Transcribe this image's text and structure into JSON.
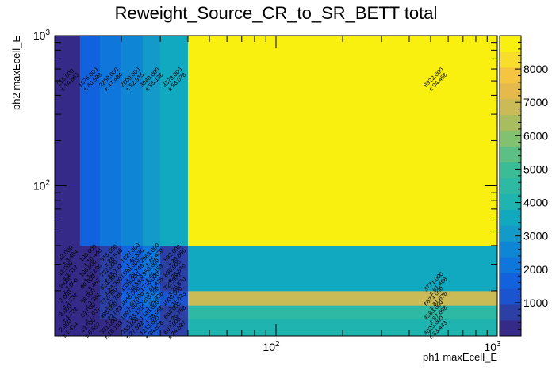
{
  "chart_data": {
    "type": "heatmap",
    "title": "Reweight_Source_CR_to_SR_BETT total",
    "xlabel": "ph1 maxEcell_E",
    "ylabel": "ph2 maxEcell_E",
    "xscale": "log",
    "yscale": "log",
    "xlim": [
      10,
      1000
    ],
    "ylim": [
      10,
      1000
    ],
    "x_edges": [
      10,
      13,
      16,
      20,
      25,
      30,
      40,
      1000
    ],
    "y_edges": [
      10,
      13,
      16,
      20,
      25,
      30,
      40,
      1000
    ],
    "x_major_ticks": [
      {
        "value": 100,
        "base": "10",
        "exp": "2"
      },
      {
        "value": 1000,
        "base": "10",
        "exp": "3"
      }
    ],
    "y_major_ticks": [
      {
        "value": 100,
        "base": "10",
        "exp": "2"
      },
      {
        "value": 1000,
        "base": "10",
        "exp": "3"
      }
    ],
    "colorbar": {
      "min": 0,
      "max": 9000,
      "ticks": [
        "1000",
        "2000",
        "3000",
        "4000",
        "5000",
        "6000",
        "7000",
        "8000"
      ],
      "palette": [
        "#352a87",
        "#2c3fa4",
        "#1a55cf",
        "#1362dd",
        "#0f76db",
        "#0f86d3",
        "#139ac8",
        "#10a9c0",
        "#1fb4b0",
        "#2db9a4",
        "#3abd96",
        "#5cc084",
        "#82c16f",
        "#a8bd5e",
        "#cabb56",
        "#e6b94c",
        "#f5c440",
        "#f8dd2c",
        "#f9f00f"
      ]
    },
    "cells": [
      {
        "xi": 0,
        "yi": 0,
        "value": 2.0,
        "value_text": "2.000",
        "error_text": "± 1.414"
      },
      {
        "xi": 1,
        "yi": 0,
        "value": 43.0,
        "value_text": "43.000",
        "error_text": "± 6.557"
      },
      {
        "xi": 2,
        "yi": 0,
        "value": 331.0,
        "value_text": "331.000",
        "error_text": "± 18.193"
      },
      {
        "xi": 3,
        "yi": 0,
        "value": 758.0,
        "value_text": "758.000",
        "error_text": "± 27.532"
      },
      {
        "xi": 4,
        "yi": 0,
        "value": 1213.0,
        "value_text": "1213.000",
        "error_text": "± 34.828"
      },
      {
        "xi": 5,
        "yi": 0,
        "value": 607.0,
        "value_text": "607.000",
        "error_text": "± 24.637"
      },
      {
        "xi": 6,
        "yi": 0,
        "value": 4025.0,
        "value_text": "4025.000",
        "error_text": "± 63.443"
      },
      {
        "xi": 0,
        "yi": 1,
        "value": 3.0,
        "value_text": "3.000",
        "error_text": "± 1.732"
      },
      {
        "xi": 1,
        "yi": 1,
        "value": 63.0,
        "value_text": "63.000",
        "error_text": "± 7.937"
      },
      {
        "xi": 2,
        "yi": 1,
        "value": 485.0,
        "value_text": "485.000",
        "error_text": "± 22.023"
      },
      {
        "xi": 3,
        "yi": 1,
        "value": 1097.0,
        "value_text": "1097.000",
        "error_text": "± 33.121"
      },
      {
        "xi": 4,
        "yi": 1,
        "value": 1449.0,
        "value_text": "1449.000",
        "error_text": "± 38.066"
      },
      {
        "xi": 5,
        "yi": 1,
        "value": 664.0,
        "value_text": "664.000",
        "error_text": "± 25.768"
      },
      {
        "xi": 6,
        "yi": 1,
        "value": 4583.0,
        "value_text": "4583.000",
        "error_text": "± 67.698"
      },
      {
        "xi": 0,
        "yi": 2,
        "value": 3.0,
        "value_text": "3.000",
        "error_text": "± 1.732"
      },
      {
        "xi": 1,
        "yi": 2,
        "value": 88.0,
        "value_text": "88.000",
        "error_text": "± 9.381"
      },
      {
        "xi": 2,
        "yi": 2,
        "value": 772.0,
        "value_text": "772.000",
        "error_text": "± 27.785"
      },
      {
        "xi": 3,
        "yi": 2,
        "value": 1648.0,
        "value_text": "1648.000",
        "error_text": "± 40.596"
      },
      {
        "xi": 4,
        "yi": 2,
        "value": 2203.0,
        "value_text": "2203.000",
        "error_text": "± 46.936"
      },
      {
        "xi": 5,
        "yi": 2,
        "value": 1000.0,
        "value_text": "1000.000",
        "error_text": "± 31.623"
      },
      {
        "xi": 6,
        "yi": 2,
        "value": 6671.0,
        "value_text": "6671.000",
        "error_text": "± 81.676"
      },
      {
        "xi": 0,
        "yi": 3,
        "value": 9.0,
        "value_text": "9.000",
        "error_text": "± 3.000"
      },
      {
        "xi": 1,
        "yi": 3,
        "value": 90.0,
        "value_text": "90.000",
        "error_text": "± 9.487"
      },
      {
        "xi": 2,
        "yi": 3,
        "value": 620.0,
        "value_text": "620.000",
        "error_text": "± 24.900"
      },
      {
        "xi": 3,
        "yi": 3,
        "value": 1339.0,
        "value_text": "1339.000",
        "error_text": "± 36.592"
      },
      {
        "xi": 4,
        "yi": 3,
        "value": 1716.0,
        "value_text": "1716.000",
        "error_text": "± 41.425"
      },
      {
        "xi": 5,
        "yi": 3,
        "value": 722.0,
        "value_text": "722.000",
        "error_text": "± 26.870"
      },
      {
        "xi": 6,
        "yi": 3,
        "value": 3771.0,
        "value_text": "3771.000",
        "error_text": "± 61.408"
      },
      {
        "xi": 0,
        "yi": 4,
        "value": 11.0,
        "value_text": "11.000",
        "error_text": "± 3.317"
      },
      {
        "xi": 1,
        "yi": 4,
        "value": 106.0,
        "value_text": "106.000",
        "error_text": "± 10.296"
      },
      {
        "xi": 2,
        "yi": 4,
        "value": 792.0,
        "value_text": "792.000",
        "error_text": "± 28.142"
      },
      {
        "xi": 3,
        "yi": 4,
        "value": 1580.0,
        "value_text": "1580.000",
        "error_text": "± 39.749"
      },
      {
        "xi": 4,
        "yi": 4,
        "value": 1950.0,
        "value_text": "1950.000",
        "error_text": "± 44.159"
      },
      {
        "xi": 5,
        "yi": 4,
        "value": 830.0,
        "value_text": "830.000",
        "error_text": "± 28.810"
      },
      {
        "xi": 6,
        "yi": 4,
        "value": 3771.0,
        "value_text": "",
        "error_text": ""
      },
      {
        "xi": 0,
        "yi": 5,
        "value": 12.0,
        "value_text": "12.000",
        "error_text": "± 3.464"
      },
      {
        "xi": 1,
        "yi": 5,
        "value": 109.0,
        "value_text": "109.000",
        "error_text": "± 10.440"
      },
      {
        "xi": 2,
        "yi": 5,
        "value": 815.0,
        "value_text": "815.000",
        "error_text": "± 28.548"
      },
      {
        "xi": 3,
        "yi": 5,
        "value": 1627.0,
        "value_text": "1627.000",
        "error_text": "± 40.336"
      },
      {
        "xi": 4,
        "yi": 5,
        "value": 2063.0,
        "value_text": "2063.000",
        "error_text": "± 45.420"
      },
      {
        "xi": 5,
        "yi": 5,
        "value": 892.0,
        "value_text": "892.000",
        "error_text": "± 29.866"
      },
      {
        "xi": 6,
        "yi": 5,
        "value": 3771.0,
        "value_text": "",
        "error_text": ""
      },
      {
        "xi": 0,
        "yi": 6,
        "value": 215.0,
        "value_text": "215.000",
        "error_text": "± 14.663"
      },
      {
        "xi": 1,
        "yi": 6,
        "value": 1676.0,
        "value_text": "1676.000",
        "error_text": "± 40.939"
      },
      {
        "xi": 2,
        "yi": 6,
        "value": 2250.0,
        "value_text": "2250.000",
        "error_text": "± 47.434"
      },
      {
        "xi": 3,
        "yi": 6,
        "value": 2800.0,
        "value_text": "2800.000",
        "error_text": "± 52.915"
      },
      {
        "xi": 4,
        "yi": 6,
        "value": 3040.0,
        "value_text": "3040.000",
        "error_text": "± 55.136"
      },
      {
        "xi": 5,
        "yi": 6,
        "value": 3373.0,
        "value_text": "3373.000",
        "error_text": "± 58.078"
      },
      {
        "xi": 6,
        "yi": 6,
        "value": 8922.0,
        "value_text": "8922.000",
        "error_text": "± 94.456"
      }
    ]
  }
}
